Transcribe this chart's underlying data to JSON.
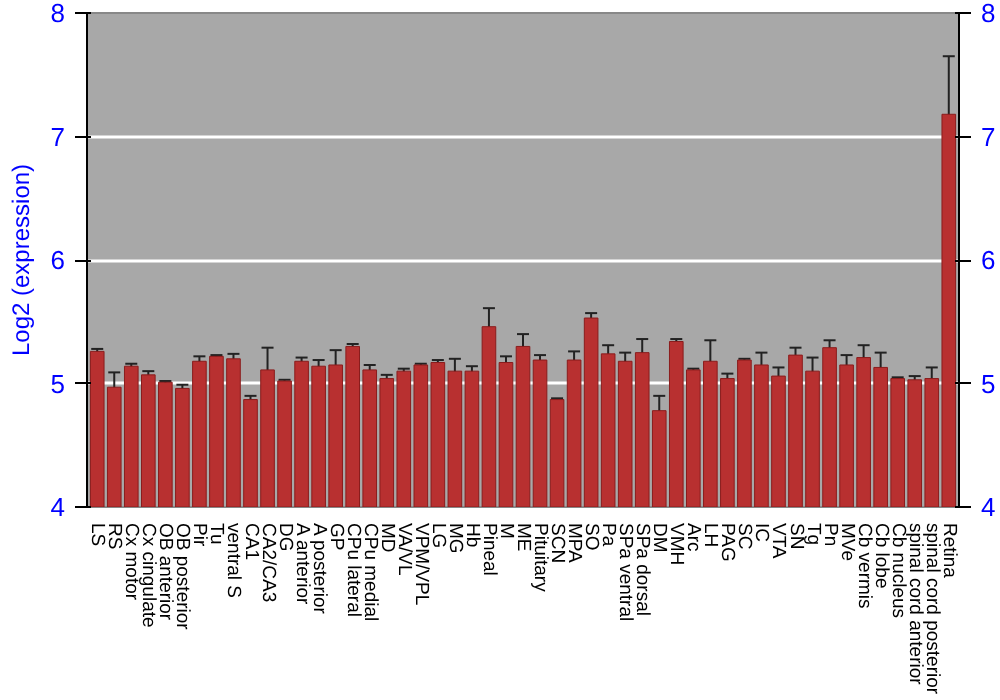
{
  "chart_data": {
    "type": "bar",
    "ylabel": "Log2 (expression)",
    "categories": [
      "LS",
      "RS",
      "Cx motor",
      "Cx cingulate",
      "OB anterior",
      "OB posterior",
      "Pir",
      "Tu",
      "ventral S",
      "CA1",
      "CA2/CA3",
      "DG",
      "A anterior",
      "A posterior",
      "GP",
      "CPu lateral",
      "CPu medial",
      "MD",
      "VA/VL",
      "VPM/VPL",
      "LG",
      "MG",
      "Hb",
      "Pineal",
      "M",
      "ME",
      "Pituitary",
      "SCN",
      "MPA",
      "SO",
      "Pa",
      "SPa ventral",
      "SPa dorsal",
      "DM",
      "VMH",
      "Arc",
      "LH",
      "PAG",
      "SC",
      "IC",
      "VTA",
      "SN",
      "Tg",
      "Pn",
      "MVe",
      "Cb vermis",
      "Cb lobe",
      "Cb nucleus",
      "spinal cord anterior",
      "spinal cord posterior",
      "Retina"
    ],
    "values": [
      5.26,
      4.97,
      5.14,
      5.07,
      5.01,
      4.96,
      5.18,
      5.22,
      5.2,
      4.87,
      5.11,
      5.02,
      5.18,
      5.14,
      5.15,
      5.3,
      5.11,
      5.04,
      5.1,
      5.15,
      5.17,
      5.1,
      5.1,
      5.46,
      5.17,
      5.3,
      5.19,
      4.87,
      5.19,
      5.53,
      5.24,
      5.18,
      5.25,
      4.78,
      5.34,
      5.11,
      5.18,
      5.04,
      5.19,
      5.15,
      5.06,
      5.23,
      5.1,
      5.29,
      5.15,
      5.21,
      5.13,
      5.04,
      5.03,
      5.04,
      7.18
    ],
    "errors": [
      0.02,
      0.12,
      0.02,
      0.03,
      0.01,
      0.03,
      0.04,
      0.01,
      0.04,
      0.03,
      0.18,
      0.01,
      0.03,
      0.05,
      0.12,
      0.02,
      0.04,
      0.03,
      0.02,
      0.01,
      0.02,
      0.1,
      0.04,
      0.15,
      0.05,
      0.1,
      0.04,
      0.01,
      0.07,
      0.04,
      0.07,
      0.07,
      0.11,
      0.12,
      0.02,
      0.01,
      0.17,
      0.04,
      0.01,
      0.1,
      0.07,
      0.06,
      0.11,
      0.06,
      0.08,
      0.1,
      0.12,
      0.01,
      0.03,
      0.09,
      0.47
    ],
    "color": "#b83030",
    "ylim": [
      4,
      8
    ],
    "yticks": [
      4,
      5,
      6,
      7,
      8
    ],
    "y2lim": [
      4,
      8
    ],
    "y2ticks": [
      4,
      5,
      6,
      7,
      8
    ],
    "grid": "y"
  }
}
